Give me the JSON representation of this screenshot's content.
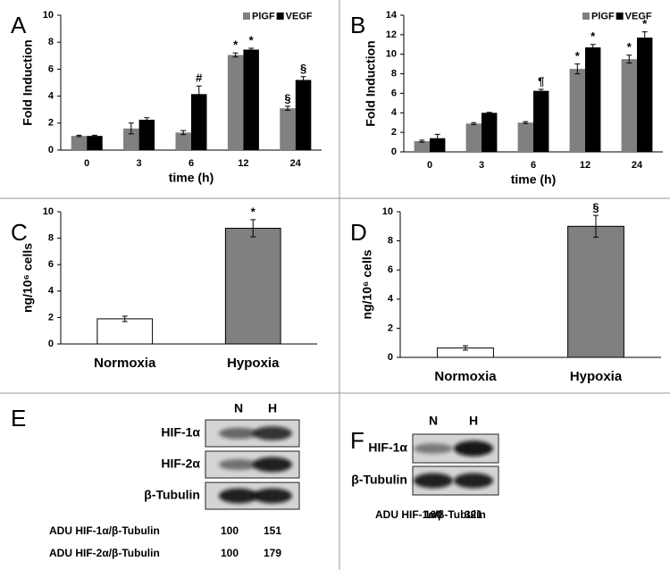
{
  "chart_data": [
    {
      "type": "bar",
      "panel": "A",
      "ylabel": "Fold Induction",
      "xlabel": "time (h)",
      "categories": [
        "0",
        "3",
        "6",
        "12",
        "24"
      ],
      "ylim": [
        0,
        10
      ],
      "yticks": [
        0,
        2,
        4,
        6,
        8,
        10
      ],
      "series": [
        {
          "name": "PlGF",
          "color": "#808080",
          "values": [
            1.05,
            1.6,
            1.3,
            7.05,
            3.1
          ],
          "errors": [
            0.05,
            0.4,
            0.15,
            0.15,
            0.15
          ],
          "annotations": [
            null,
            null,
            null,
            "*",
            "§"
          ]
        },
        {
          "name": "VEGF",
          "color": "#000000",
          "values": [
            1.05,
            2.25,
            4.15,
            7.45,
            5.2
          ],
          "errors": [
            0.05,
            0.15,
            0.6,
            0.1,
            0.25
          ],
          "annotations": [
            null,
            null,
            "#",
            "*",
            "§"
          ]
        }
      ]
    },
    {
      "type": "bar",
      "panel": "B",
      "ylabel": "Fold Induction",
      "xlabel": "time (h)",
      "categories": [
        "0",
        "3",
        "6",
        "12",
        "24"
      ],
      "ylim": [
        0,
        14
      ],
      "yticks": [
        0,
        2,
        4,
        6,
        8,
        10,
        12,
        14
      ],
      "series": [
        {
          "name": "PlGF",
          "color": "#808080",
          "values": [
            1.1,
            2.9,
            3.0,
            8.5,
            9.5
          ],
          "errors": [
            0.1,
            0.1,
            0.1,
            0.5,
            0.4
          ],
          "annotations": [
            null,
            null,
            null,
            "*",
            "*"
          ]
        },
        {
          "name": "VEGF",
          "color": "#000000",
          "values": [
            1.4,
            4.0,
            6.25,
            10.7,
            11.7
          ],
          "errors": [
            0.4,
            0.05,
            0.15,
            0.3,
            0.6
          ],
          "annotations": [
            null,
            null,
            "¶",
            "*",
            "*"
          ]
        }
      ]
    },
    {
      "type": "bar",
      "panel": "C",
      "ylabel": "ng/10⁶ cells",
      "categories": [
        "Normoxia",
        "Hypoxia"
      ],
      "ylim": [
        0,
        10
      ],
      "yticks": [
        0,
        2,
        4,
        6,
        8,
        10
      ],
      "series": [
        {
          "colors": [
            "#ffffff",
            "#808080"
          ],
          "values": [
            1.9,
            8.75
          ],
          "errors": [
            0.2,
            0.65
          ],
          "annotations": [
            null,
            "*"
          ]
        }
      ]
    },
    {
      "type": "bar",
      "panel": "D",
      "ylabel": "ng/10⁶ cells",
      "categories": [
        "Normoxia",
        "Hypoxia"
      ],
      "ylim": [
        0,
        10
      ],
      "yticks": [
        0,
        2,
        4,
        6,
        8,
        10
      ],
      "series": [
        {
          "colors": [
            "#ffffff",
            "#808080"
          ],
          "values": [
            0.65,
            9.0
          ],
          "errors": [
            0.15,
            0.75
          ],
          "annotations": [
            null,
            "§"
          ]
        }
      ]
    }
  ],
  "blots": [
    {
      "panel": "E",
      "columns": [
        "N",
        "H"
      ],
      "rows": [
        "HIF-1α",
        "HIF-2α",
        "β-Tubulin"
      ],
      "quantification": [
        {
          "label": "ADU HIF-1α/β-Tubulin",
          "values": [
            "100",
            "151"
          ]
        },
        {
          "label": "ADU HIF-2α/β-Tubulin",
          "values": [
            "100",
            "179"
          ]
        }
      ]
    },
    {
      "panel": "F",
      "columns": [
        "N",
        "H"
      ],
      "rows": [
        "HIF-1α",
        "β-Tubulin"
      ],
      "quantification": [
        {
          "label": "ADU HIF-1α/β-Tubulin",
          "values": [
            "100",
            "321"
          ]
        }
      ]
    }
  ]
}
